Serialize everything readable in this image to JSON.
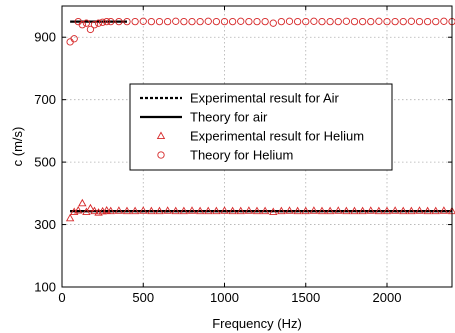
{
  "chart_data": {
    "type": "scatter",
    "title": "",
    "xlabel": "Frequency (Hz)",
    "ylabel": "c (m/s)",
    "xlim": [
      0,
      2400
    ],
    "ylim": [
      100,
      1000
    ],
    "xticks": [
      0,
      500,
      1000,
      1500,
      2000
    ],
    "yticks": [
      100,
      300,
      500,
      700,
      900
    ],
    "grid": true,
    "legend_placement": "center",
    "series": [
      {
        "name": "Experimental result for Air",
        "kind": "line",
        "style": "dashed",
        "color": "#000000",
        "x": [
          50,
          2400
        ],
        "y": [
          343,
          343
        ]
      },
      {
        "name": "Theory for air",
        "kind": "line",
        "style": "solid",
        "color": "#000000",
        "x": [
          50,
          2400
        ],
        "y": [
          343,
          343
        ],
        "segments": [
          {
            "x": [
              50,
              400
            ],
            "y": [
              950,
              950
            ]
          },
          {
            "x": [
              50,
              2400
            ],
            "y": [
              343,
              343
            ]
          }
        ]
      },
      {
        "name": "Experimental result for Helium",
        "kind": "marker",
        "marker": "triangle",
        "color": "#d62728",
        "x": [
          50,
          75,
          100,
          125,
          150,
          175,
          200,
          225,
          250,
          275,
          300,
          350,
          400,
          450,
          500,
          550,
          600,
          650,
          700,
          750,
          800,
          850,
          900,
          950,
          1000,
          1050,
          1100,
          1150,
          1200,
          1250,
          1300,
          1350,
          1400,
          1450,
          1500,
          1550,
          1600,
          1650,
          1700,
          1750,
          1800,
          1850,
          1900,
          1950,
          2000,
          2050,
          2100,
          2150,
          2200,
          2250,
          2300,
          2350,
          2400
        ],
        "y": [
          320,
          340,
          345,
          368,
          340,
          352,
          343,
          338,
          342,
          345,
          343,
          344,
          343,
          343,
          344,
          343,
          343,
          344,
          343,
          343,
          344,
          343,
          343,
          343,
          344,
          343,
          343,
          344,
          343,
          343,
          340,
          343,
          344,
          343,
          343,
          344,
          343,
          343,
          344,
          343,
          343,
          343,
          344,
          343,
          343,
          344,
          343,
          343,
          344,
          343,
          343,
          344,
          343
        ]
      },
      {
        "name": "Theory for Helium",
        "kind": "marker",
        "marker": "circle",
        "color": "#d62728",
        "x": [
          50,
          75,
          100,
          125,
          150,
          175,
          200,
          225,
          250,
          275,
          300,
          350,
          400,
          450,
          500,
          550,
          600,
          650,
          700,
          750,
          800,
          850,
          900,
          950,
          1000,
          1050,
          1100,
          1150,
          1200,
          1250,
          1300,
          1350,
          1400,
          1450,
          1500,
          1550,
          1600,
          1650,
          1700,
          1750,
          1800,
          1850,
          1900,
          1950,
          2000,
          2050,
          2100,
          2150,
          2200,
          2250,
          2300,
          2350,
          2400
        ],
        "y": [
          885,
          895,
          950,
          940,
          945,
          925,
          940,
          945,
          948,
          950,
          950,
          950,
          950,
          950,
          951,
          950,
          950,
          950,
          951,
          950,
          950,
          950,
          951,
          950,
          950,
          950,
          951,
          950,
          950,
          950,
          945,
          950,
          951,
          950,
          950,
          951,
          950,
          950,
          950,
          951,
          950,
          950,
          950,
          951,
          950,
          950,
          950,
          951,
          950,
          950,
          950,
          951,
          950
        ]
      }
    ]
  }
}
